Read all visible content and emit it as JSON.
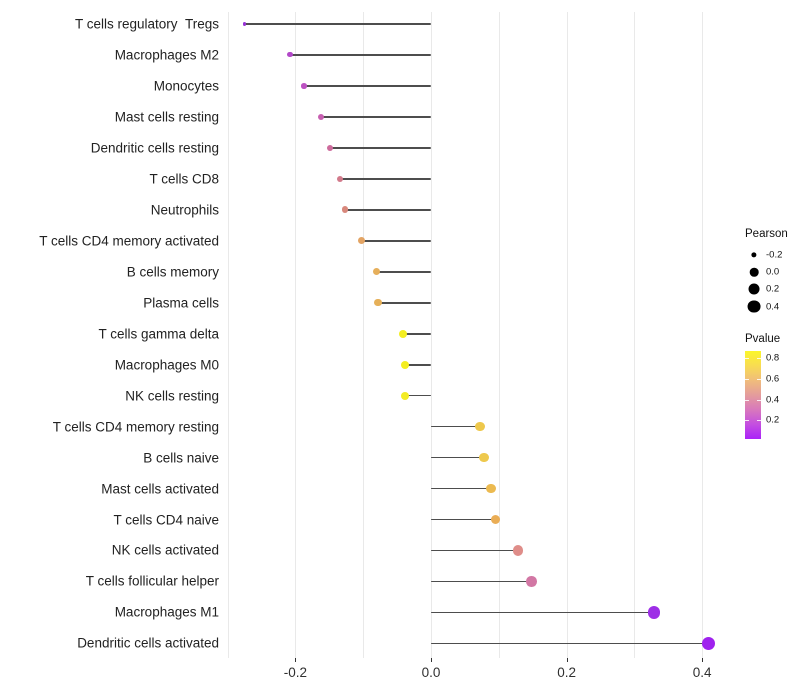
{
  "figure": {
    "background": "#ffffff",
    "stem_color": "#4d4d4d",
    "gridline_color": "#e9e9e9",
    "axis_text_color": "#303030"
  },
  "legends": {
    "size": {
      "title": "Pearson",
      "items": [
        {
          "label": "-0.2",
          "value": -0.2
        },
        {
          "label": "0.0",
          "value": 0.0
        },
        {
          "label": "0.2",
          "value": 0.2
        },
        {
          "label": "0.4",
          "value": 0.4
        }
      ],
      "dot_color": "#000000"
    },
    "color": {
      "title": "Pvalue",
      "tick_labels": [
        {
          "label": "0.8",
          "value": 0.8
        },
        {
          "label": "0.6",
          "value": 0.6
        },
        {
          "label": "0.4",
          "value": 0.4
        },
        {
          "label": "0.2",
          "value": 0.2
        }
      ],
      "domain": [
        0.02,
        0.87
      ],
      "gradient_stops": [
        "#FBF62B",
        "#F8DC52",
        "#F0BD7B",
        "#E49C9C",
        "#D878BC",
        "#C44FE0",
        "#AB22F8"
      ]
    }
  },
  "chart_data": {
    "type": "scatter",
    "variant": "lollipop",
    "orientation": "horizontal",
    "title": "",
    "xlabel": "",
    "ylabel": "",
    "xlim": [
      -0.31,
      0.45
    ],
    "x_tick_values": [
      -0.2,
      0.0,
      0.2,
      0.4
    ],
    "x_tick_labels": [
      "-0.2",
      "0.0",
      "0.2",
      "0.4"
    ],
    "grid": "vertical-minor-and-major-0.1-steps",
    "grid_values": [
      -0.3,
      -0.2,
      -0.1,
      0.0,
      0.1,
      0.2,
      0.3,
      0.4
    ],
    "legend_position": "right",
    "size_encoding": {
      "field": "pearson",
      "domain": [
        -0.28,
        0.41
      ]
    },
    "color_encoding": {
      "field": "pvalue",
      "low": "purple",
      "high": "yellow"
    },
    "points": [
      {
        "label": "T cells regulatory  Tregs",
        "pearson": -0.275,
        "pvalue": 0.1,
        "color": "#9733D4"
      },
      {
        "label": "Macrophages M2",
        "pearson": -0.208,
        "pvalue": 0.25,
        "color": "#B248C8"
      },
      {
        "label": "Monocytes",
        "pearson": -0.187,
        "pvalue": 0.28,
        "color": "#BC52C2"
      },
      {
        "label": "Mast cells resting",
        "pearson": -0.162,
        "pvalue": 0.33,
        "color": "#C75FB1"
      },
      {
        "label": "Dendritic cells resting",
        "pearson": -0.149,
        "pvalue": 0.38,
        "color": "#CD6B9C"
      },
      {
        "label": "T cells CD8",
        "pearson": -0.134,
        "pvalue": 0.43,
        "color": "#D27A8B"
      },
      {
        "label": "Neutrophils",
        "pearson": -0.127,
        "pvalue": 0.47,
        "color": "#D8887C"
      },
      {
        "label": "T cells CD4 memory activated",
        "pearson": -0.103,
        "pvalue": 0.57,
        "color": "#E3A464"
      },
      {
        "label": "B cells memory",
        "pearson": -0.08,
        "pvalue": 0.6,
        "color": "#E6AF5B"
      },
      {
        "label": "Plasma cells",
        "pearson": -0.078,
        "pvalue": 0.6,
        "color": "#E6B059"
      },
      {
        "label": "T cells gamma delta",
        "pearson": -0.041,
        "pvalue": 0.85,
        "color": "#F4EE21"
      },
      {
        "label": "Macrophages M0",
        "pearson": -0.039,
        "pvalue": 0.85,
        "color": "#F4EE21"
      },
      {
        "label": "NK cells resting",
        "pearson": -0.038,
        "pvalue": 0.84,
        "color": "#F3EC25"
      },
      {
        "label": "T cells CD4 memory resting",
        "pearson": 0.072,
        "pvalue": 0.68,
        "color": "#EEC84C"
      },
      {
        "label": "B cells naive",
        "pearson": 0.078,
        "pvalue": 0.68,
        "color": "#EEC94E"
      },
      {
        "label": "Mast cells activated",
        "pearson": 0.089,
        "pvalue": 0.64,
        "color": "#ECBA50"
      },
      {
        "label": "T cells CD4 naive",
        "pearson": 0.095,
        "pvalue": 0.6,
        "color": "#EAAD55"
      },
      {
        "label": "NK cells activated",
        "pearson": 0.128,
        "pvalue": 0.46,
        "color": "#DF8D89"
      },
      {
        "label": "T cells follicular helper",
        "pearson": 0.148,
        "pvalue": 0.36,
        "color": "#D277A4"
      },
      {
        "label": "Macrophages M1",
        "pearson": 0.329,
        "pvalue": 0.04,
        "color": "#9D2EE6"
      },
      {
        "label": "Dendritic cells activated",
        "pearson": 0.409,
        "pvalue": 0.02,
        "color": "#9F22EE"
      }
    ]
  }
}
